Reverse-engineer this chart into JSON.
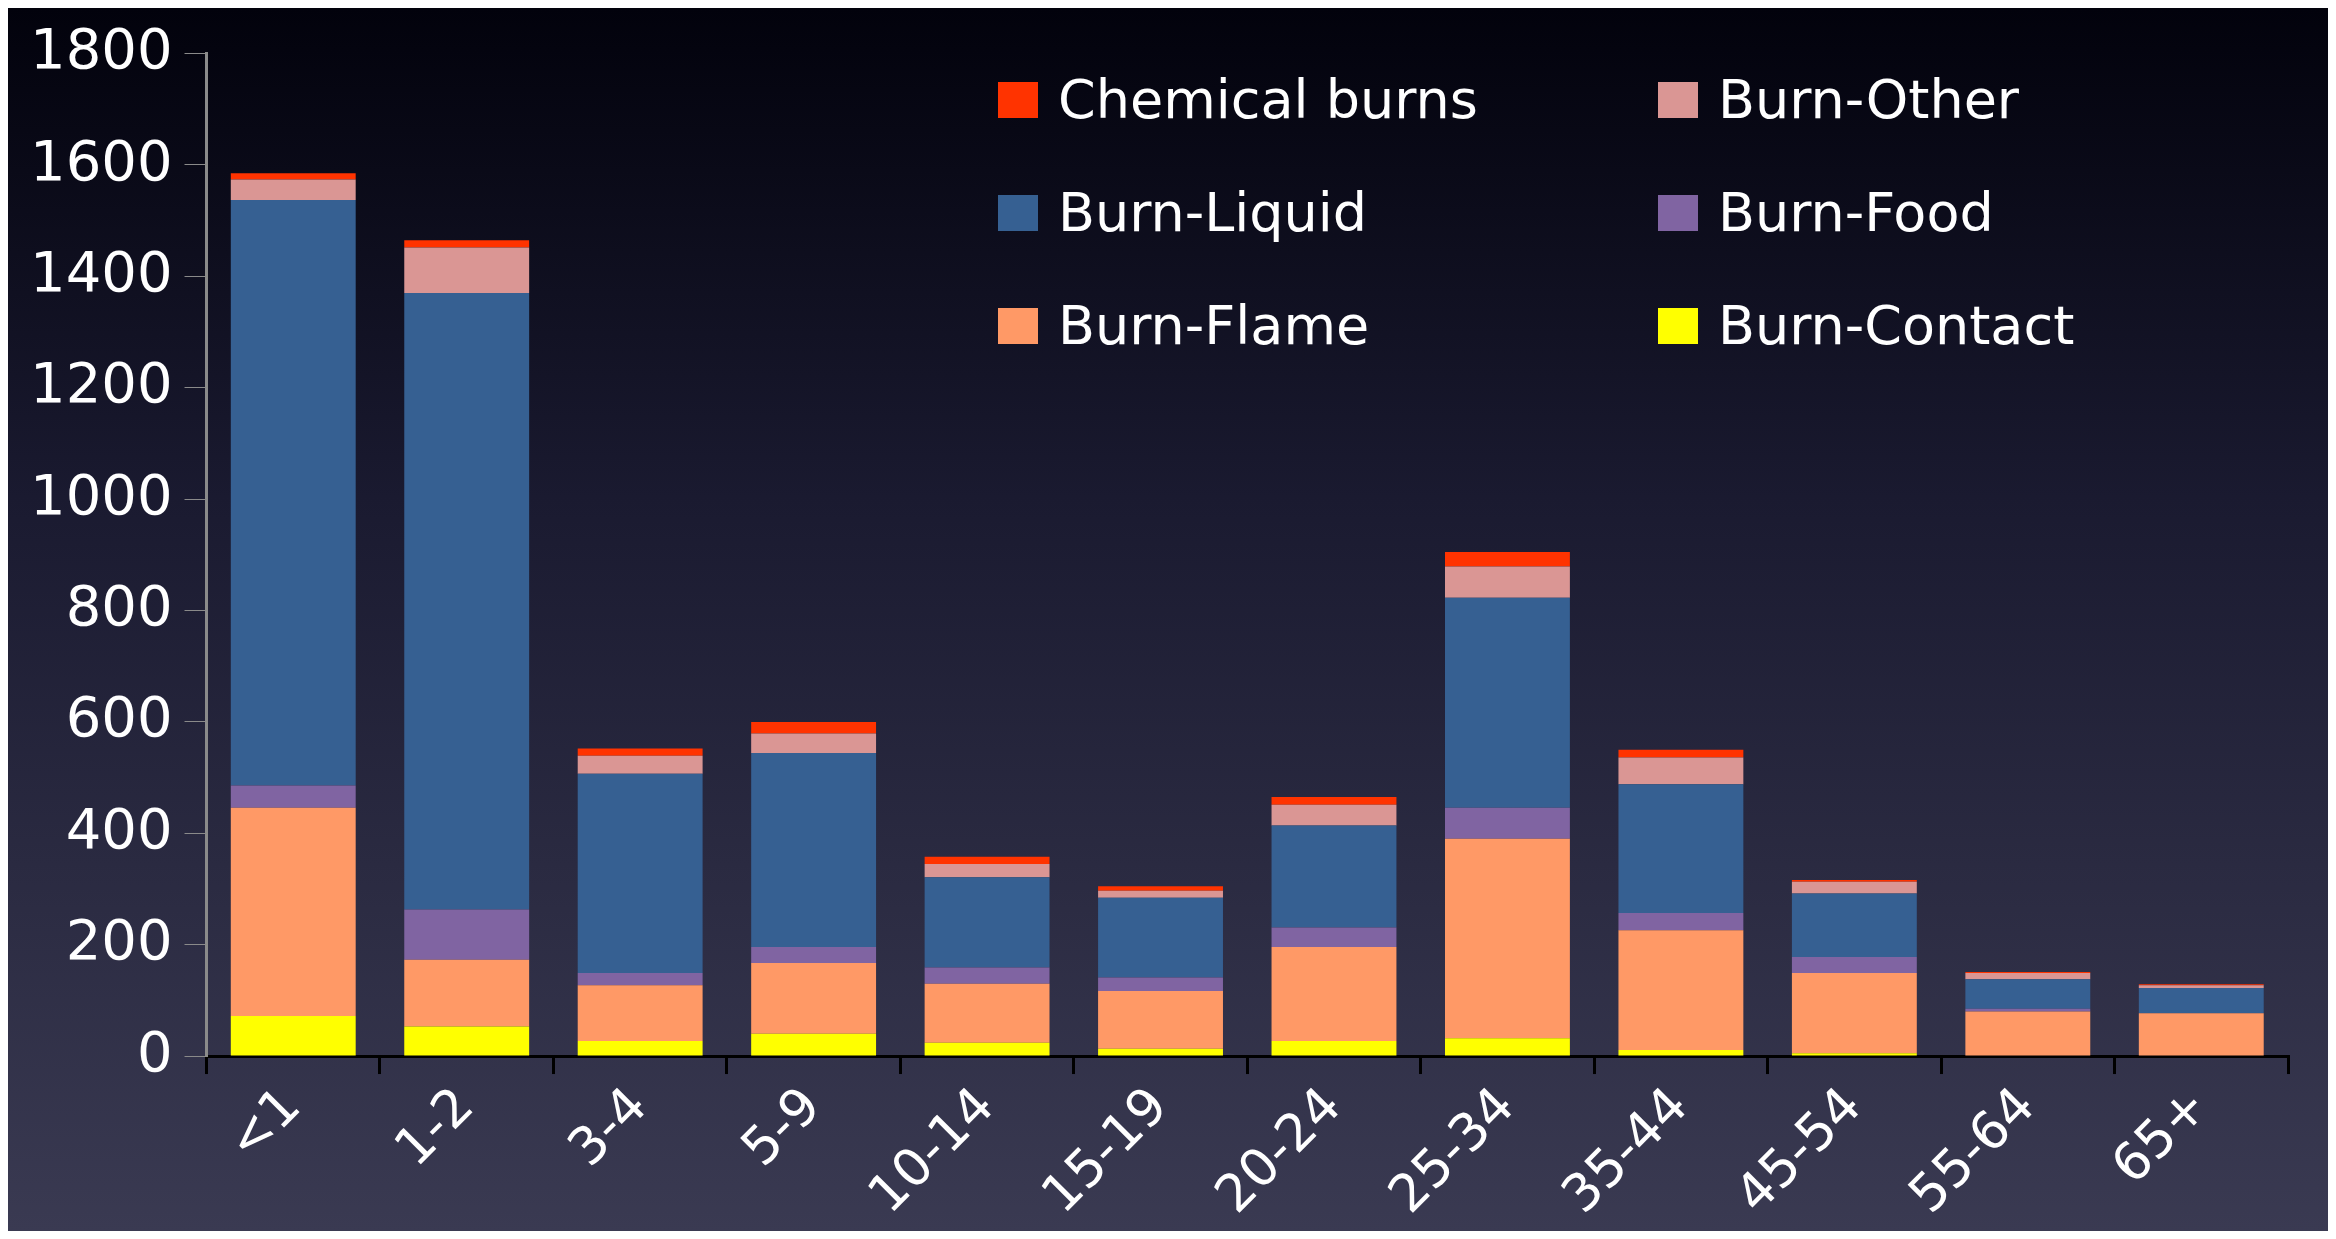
{
  "chart_data": {
    "type": "bar",
    "stacked": true,
    "categories": [
      "<1",
      "1-2",
      "3-4",
      "5-9",
      "10-14",
      "15-19",
      "20-24",
      "25-34",
      "35-44",
      "45-54",
      "55-64",
      "65+"
    ],
    "series": [
      {
        "name": "Burn-Contact",
        "color": "#ffff00",
        "values": [
          72,
          53,
          27,
          40,
          24,
          13,
          27,
          32,
          11,
          5,
          0,
          0
        ]
      },
      {
        "name": "Burn-Flame",
        "color": "#ff9966",
        "values": [
          374,
          120,
          100,
          127,
          106,
          104,
          169,
          358,
          215,
          144,
          80,
          77
        ]
      },
      {
        "name": "Burn-Food",
        "color": "#8064a2",
        "values": [
          40,
          90,
          22,
          29,
          29,
          24,
          35,
          56,
          31,
          29,
          5,
          null
        ]
      },
      {
        "name": "Burn-Liquid",
        "color": "#366092",
        "values": [
          1051,
          1107,
          358,
          348,
          162,
          143,
          183,
          377,
          231,
          114,
          53,
          45
        ]
      },
      {
        "name": "Burn-Other",
        "color": "#da9694",
        "values": [
          37,
          82,
          32,
          35,
          24,
          13,
          37,
          56,
          48,
          21,
          11,
          5
        ]
      },
      {
        "name": "Chemical burns",
        "color": "#ff3300",
        "values": [
          11,
          13,
          13,
          21,
          13,
          8,
          14,
          26,
          14,
          3,
          2,
          2
        ]
      }
    ],
    "ylim": [
      0,
      1800
    ],
    "yticks": [
      0,
      200,
      400,
      600,
      800,
      1000,
      1200,
      1400,
      1600,
      1800
    ],
    "grid": false,
    "legend": "top right"
  }
}
